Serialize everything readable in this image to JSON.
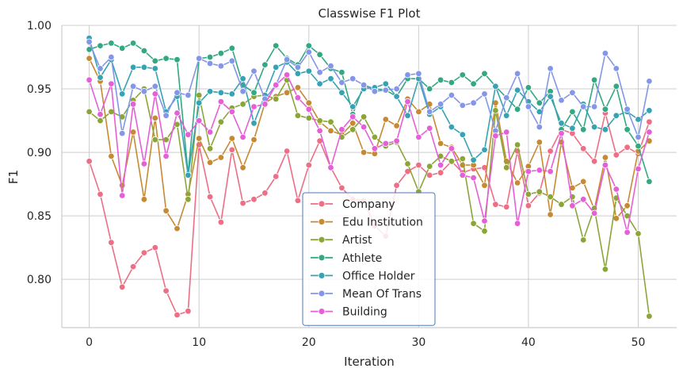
{
  "chart_data": {
    "type": "line",
    "title": "Classwise F1 Plot",
    "xlabel": "Iteration",
    "ylabel": "F1",
    "xlim": [
      -2.5,
      53.5
    ],
    "ylim": [
      0.762,
      1.0
    ],
    "xticks": [
      0,
      10,
      20,
      30,
      40,
      50
    ],
    "yticks": [
      0.8,
      0.85,
      0.9,
      0.95,
      1.0
    ],
    "ytick_labels": [
      "0.80",
      "0.85",
      "0.90",
      "0.95",
      "1.00"
    ],
    "grid": true,
    "legend_position": "lower-center",
    "x": [
      0,
      1,
      2,
      3,
      4,
      5,
      6,
      7,
      8,
      9,
      10,
      11,
      12,
      13,
      14,
      15,
      16,
      17,
      18,
      19,
      20,
      21,
      22,
      23,
      24,
      25,
      26,
      27,
      28,
      29,
      30,
      31,
      32,
      33,
      34,
      35,
      36,
      37,
      38,
      39,
      40,
      41,
      42,
      43,
      44,
      45,
      46,
      47,
      48,
      49,
      50,
      51
    ],
    "series": [
      {
        "name": "Company",
        "color": "#ed6e85",
        "values": [
          0.893,
          0.867,
          0.829,
          0.794,
          0.81,
          0.821,
          0.825,
          0.791,
          0.772,
          0.775,
          0.906,
          0.865,
          0.845,
          0.902,
          0.86,
          0.863,
          0.868,
          0.881,
          0.901,
          0.862,
          0.89,
          0.909,
          0.888,
          0.872,
          0.863,
          0.862,
          0.842,
          0.834,
          0.874,
          0.885,
          0.89,
          0.882,
          0.884,
          0.893,
          0.884,
          0.887,
          0.888,
          0.859,
          0.857,
          0.901,
          0.858,
          0.868,
          0.901,
          0.918,
          0.915,
          0.903,
          0.893,
          0.931,
          0.898,
          0.904,
          0.899,
          0.924
        ]
      },
      {
        "name": "Edu Institution",
        "color": "#c58a33",
        "values": [
          0.974,
          0.956,
          0.897,
          0.874,
          0.916,
          0.863,
          0.927,
          0.854,
          0.84,
          0.867,
          0.911,
          0.892,
          0.896,
          0.911,
          0.888,
          0.91,
          0.939,
          0.944,
          0.947,
          0.951,
          0.939,
          0.924,
          0.917,
          0.914,
          0.923,
          0.9,
          0.899,
          0.926,
          0.921,
          0.942,
          0.932,
          0.938,
          0.907,
          0.904,
          0.89,
          0.89,
          0.874,
          0.939,
          0.893,
          0.876,
          0.889,
          0.908,
          0.851,
          0.908,
          0.872,
          0.877,
          0.855,
          0.896,
          0.848,
          0.858,
          0.901,
          0.909
        ]
      },
      {
        "name": "Artist",
        "color": "#8ba539",
        "values": [
          0.932,
          0.925,
          0.932,
          0.928,
          0.941,
          0.95,
          0.91,
          0.91,
          0.922,
          0.863,
          0.945,
          0.903,
          0.924,
          0.935,
          0.938,
          0.944,
          0.945,
          0.942,
          0.957,
          0.929,
          0.927,
          0.925,
          0.924,
          0.912,
          0.918,
          0.928,
          0.912,
          0.905,
          0.908,
          0.891,
          0.869,
          0.889,
          0.897,
          0.893,
          0.895,
          0.844,
          0.838,
          0.933,
          0.888,
          0.906,
          0.867,
          0.869,
          0.865,
          0.859,
          0.865,
          0.831,
          0.856,
          0.808,
          0.864,
          0.85,
          0.836,
          0.771
        ]
      },
      {
        "name": "Athlete",
        "color": "#33a882",
        "values": [
          0.981,
          0.984,
          0.986,
          0.982,
          0.986,
          0.98,
          0.972,
          0.974,
          0.973,
          0.883,
          0.974,
          0.975,
          0.978,
          0.982,
          0.953,
          0.947,
          0.969,
          0.984,
          0.974,
          0.969,
          0.984,
          0.977,
          0.966,
          0.963,
          0.93,
          0.953,
          0.95,
          0.949,
          0.944,
          0.958,
          0.958,
          0.95,
          0.957,
          0.955,
          0.961,
          0.954,
          0.962,
          0.952,
          0.943,
          0.934,
          0.951,
          0.939,
          0.948,
          0.918,
          0.932,
          0.918,
          0.957,
          0.934,
          0.952,
          0.918,
          0.905,
          0.877
        ]
      },
      {
        "name": "Office Holder",
        "color": "#36a3b4",
        "values": [
          0.99,
          0.959,
          0.973,
          0.946,
          0.967,
          0.967,
          0.966,
          0.932,
          0.944,
          0.882,
          0.939,
          0.948,
          0.947,
          0.946,
          0.958,
          0.923,
          0.945,
          0.967,
          0.971,
          0.962,
          0.964,
          0.954,
          0.958,
          0.947,
          0.936,
          0.95,
          0.951,
          0.954,
          0.944,
          0.929,
          0.958,
          0.93,
          0.936,
          0.92,
          0.914,
          0.894,
          0.902,
          0.952,
          0.929,
          0.949,
          0.94,
          0.932,
          0.944,
          0.923,
          0.919,
          0.938,
          0.92,
          0.918,
          0.929,
          0.932,
          0.926,
          0.933
        ]
      },
      {
        "name": "Mean Of Trans",
        "color": "#8396e8",
        "values": [
          0.987,
          0.966,
          0.975,
          0.915,
          0.952,
          0.948,
          0.952,
          0.929,
          0.947,
          0.945,
          0.974,
          0.97,
          0.968,
          0.972,
          0.948,
          0.964,
          0.942,
          0.953,
          0.973,
          0.967,
          0.979,
          0.963,
          0.968,
          0.955,
          0.958,
          0.953,
          0.948,
          0.949,
          0.95,
          0.961,
          0.962,
          0.932,
          0.938,
          0.945,
          0.937,
          0.939,
          0.946,
          0.917,
          0.943,
          0.962,
          0.936,
          0.92,
          0.966,
          0.941,
          0.947,
          0.936,
          0.936,
          0.978,
          0.966,
          0.934,
          0.912,
          0.956
        ]
      },
      {
        "name": "Building",
        "color": "#e55fd6",
        "values": [
          0.957,
          0.93,
          0.954,
          0.866,
          0.938,
          0.891,
          0.946,
          0.897,
          0.931,
          0.914,
          0.925,
          0.916,
          0.94,
          0.932,
          0.912,
          0.936,
          0.938,
          0.953,
          0.961,
          0.943,
          0.934,
          0.917,
          0.888,
          0.918,
          0.928,
          0.92,
          0.903,
          0.907,
          0.909,
          0.94,
          0.912,
          0.919,
          0.89,
          0.903,
          0.882,
          0.88,
          0.846,
          0.913,
          0.916,
          0.844,
          0.885,
          0.886,
          0.885,
          0.915,
          0.858,
          0.863,
          0.852,
          0.89,
          0.871,
          0.837,
          0.887,
          0.916
        ]
      }
    ]
  }
}
